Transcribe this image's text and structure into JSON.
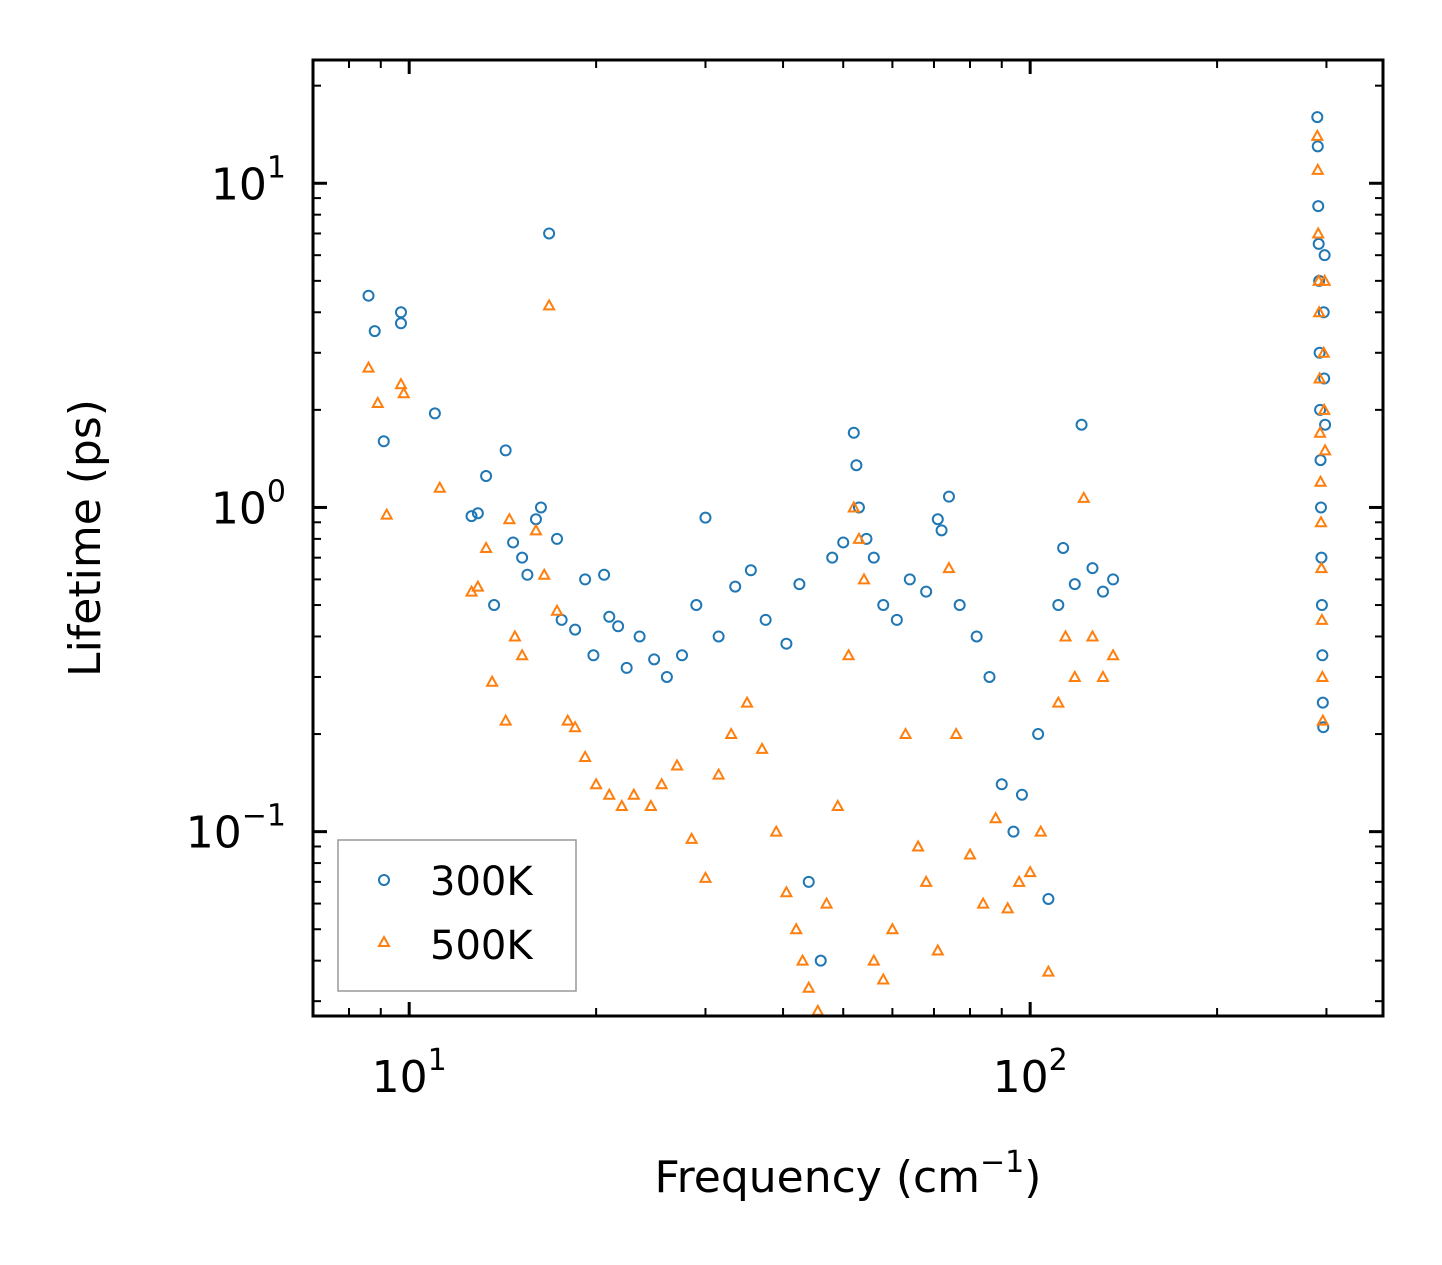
{
  "chart_data": {
    "type": "scatter",
    "title": "",
    "xlabel": "Frequency (cm",
    "xlabel_sup": "−1",
    "xlabel_tail": ")",
    "ylabel": "Lifetime (ps)",
    "xscale": "log",
    "yscale": "log",
    "xlim": [
      7.0,
      370
    ],
    "ylim": [
      0.027,
      24
    ],
    "x_ticks": [
      {
        "value": 10,
        "base": "10",
        "exp": "1"
      },
      {
        "value": 100,
        "base": "10",
        "exp": "2"
      }
    ],
    "y_ticks": [
      {
        "value": 0.1,
        "base": "10",
        "exp": "−1"
      },
      {
        "value": 1,
        "base": "10",
        "exp": "0"
      },
      {
        "value": 10,
        "base": "10",
        "exp": "1"
      }
    ],
    "legend_position": "lower-left",
    "series": [
      {
        "name": "300K",
        "marker": "circle",
        "color": "#1f77b4",
        "points": [
          [
            8.6,
            4.5
          ],
          [
            8.8,
            3.5
          ],
          [
            9.1,
            1.6
          ],
          [
            9.7,
            4.0
          ],
          [
            9.7,
            3.7
          ],
          [
            11.0,
            1.95
          ],
          [
            12.6,
            0.94
          ],
          [
            12.9,
            0.96
          ],
          [
            13.3,
            1.25
          ],
          [
            13.7,
            0.5
          ],
          [
            14.3,
            1.5
          ],
          [
            14.7,
            0.78
          ],
          [
            15.2,
            0.7
          ],
          [
            15.5,
            0.62
          ],
          [
            16.0,
            0.92
          ],
          [
            16.3,
            1.0
          ],
          [
            16.8,
            7.0
          ],
          [
            17.3,
            0.8
          ],
          [
            17.6,
            0.45
          ],
          [
            18.5,
            0.42
          ],
          [
            19.2,
            0.6
          ],
          [
            19.8,
            0.35
          ],
          [
            20.6,
            0.62
          ],
          [
            21.0,
            0.46
          ],
          [
            21.7,
            0.43
          ],
          [
            22.4,
            0.32
          ],
          [
            23.5,
            0.4
          ],
          [
            24.8,
            0.34
          ],
          [
            26.0,
            0.3
          ],
          [
            27.5,
            0.35
          ],
          [
            29.0,
            0.5
          ],
          [
            30.0,
            0.93
          ],
          [
            31.5,
            0.4
          ],
          [
            33.5,
            0.57
          ],
          [
            35.5,
            0.64
          ],
          [
            37.5,
            0.45
          ],
          [
            40.5,
            0.38
          ],
          [
            42.5,
            0.58
          ],
          [
            44.0,
            0.07
          ],
          [
            46.0,
            0.04
          ],
          [
            48.0,
            0.7
          ],
          [
            50.0,
            0.78
          ],
          [
            52.0,
            1.7
          ],
          [
            52.5,
            1.35
          ],
          [
            53.0,
            1.0
          ],
          [
            54.5,
            0.8
          ],
          [
            56.0,
            0.7
          ],
          [
            58.0,
            0.5
          ],
          [
            61.0,
            0.45
          ],
          [
            64.0,
            0.6
          ],
          [
            68.0,
            0.55
          ],
          [
            71.0,
            0.92
          ],
          [
            72.0,
            0.85
          ],
          [
            74.0,
            1.08
          ],
          [
            77.0,
            0.5
          ],
          [
            82.0,
            0.4
          ],
          [
            86.0,
            0.3
          ],
          [
            90.0,
            0.14
          ],
          [
            94.0,
            0.1
          ],
          [
            97.0,
            0.13
          ],
          [
            103.0,
            0.2
          ],
          [
            107.0,
            0.062
          ],
          [
            111.0,
            0.5
          ],
          [
            113.0,
            0.75
          ],
          [
            118.0,
            0.58
          ],
          [
            121.0,
            1.8
          ],
          [
            126.0,
            0.65
          ],
          [
            131.0,
            0.55
          ],
          [
            136.0,
            0.6
          ],
          [
            290.0,
            16.0
          ],
          [
            290.5,
            13.0
          ],
          [
            291.0,
            8.5
          ],
          [
            291.5,
            6.5
          ],
          [
            292.0,
            5.0
          ],
          [
            292.5,
            3.0
          ],
          [
            293.0,
            2.0
          ],
          [
            293.5,
            1.4
          ],
          [
            294.0,
            1.0
          ],
          [
            294.5,
            0.7
          ],
          [
            295.0,
            0.5
          ],
          [
            295.5,
            0.35
          ],
          [
            296.0,
            0.25
          ],
          [
            296.5,
            0.21
          ],
          [
            297.0,
            4.0
          ],
          [
            297.5,
            2.5
          ],
          [
            298.0,
            6.0
          ],
          [
            298.5,
            1.8
          ]
        ]
      },
      {
        "name": "500K",
        "marker": "triangle",
        "color": "#ff7f0e",
        "points": [
          [
            8.6,
            2.7
          ],
          [
            8.9,
            2.1
          ],
          [
            9.2,
            0.95
          ],
          [
            9.7,
            2.4
          ],
          [
            9.8,
            2.25
          ],
          [
            11.2,
            1.15
          ],
          [
            12.6,
            0.55
          ],
          [
            12.9,
            0.57
          ],
          [
            13.3,
            0.75
          ],
          [
            13.6,
            0.29
          ],
          [
            14.3,
            0.22
          ],
          [
            14.5,
            0.92
          ],
          [
            14.8,
            0.4
          ],
          [
            15.2,
            0.35
          ],
          [
            16.0,
            0.85
          ],
          [
            16.5,
            0.62
          ],
          [
            16.8,
            4.2
          ],
          [
            17.3,
            0.48
          ],
          [
            18.0,
            0.22
          ],
          [
            18.5,
            0.21
          ],
          [
            19.2,
            0.17
          ],
          [
            20.0,
            0.14
          ],
          [
            21.0,
            0.13
          ],
          [
            22.0,
            0.12
          ],
          [
            23.0,
            0.13
          ],
          [
            24.5,
            0.12
          ],
          [
            25.5,
            0.14
          ],
          [
            27.0,
            0.16
          ],
          [
            28.5,
            0.095
          ],
          [
            30.0,
            0.072
          ],
          [
            31.5,
            0.15
          ],
          [
            33.0,
            0.2
          ],
          [
            35.0,
            0.25
          ],
          [
            37.0,
            0.18
          ],
          [
            39.0,
            0.1
          ],
          [
            40.5,
            0.065
          ],
          [
            42.0,
            0.05
          ],
          [
            43.0,
            0.04
          ],
          [
            44.0,
            0.033
          ],
          [
            45.5,
            0.028
          ],
          [
            47.0,
            0.06
          ],
          [
            49.0,
            0.12
          ],
          [
            51.0,
            0.35
          ],
          [
            52.0,
            1.0
          ],
          [
            53.0,
            0.8
          ],
          [
            54.0,
            0.6
          ],
          [
            56.0,
            0.04
          ],
          [
            58.0,
            0.035
          ],
          [
            60.0,
            0.05
          ],
          [
            63.0,
            0.2
          ],
          [
            66.0,
            0.09
          ],
          [
            68.0,
            0.07
          ],
          [
            71.0,
            0.043
          ],
          [
            74.0,
            0.65
          ],
          [
            76.0,
            0.2
          ],
          [
            80.0,
            0.085
          ],
          [
            84.0,
            0.06
          ],
          [
            88.0,
            0.11
          ],
          [
            92.0,
            0.058
          ],
          [
            96.0,
            0.07
          ],
          [
            100.0,
            0.075
          ],
          [
            104.0,
            0.1
          ],
          [
            107.0,
            0.037
          ],
          [
            111.0,
            0.25
          ],
          [
            114.0,
            0.4
          ],
          [
            118.0,
            0.3
          ],
          [
            122.0,
            1.07
          ],
          [
            126.0,
            0.4
          ],
          [
            131.0,
            0.3
          ],
          [
            136.0,
            0.35
          ],
          [
            290.0,
            14.0
          ],
          [
            290.5,
            11.0
          ],
          [
            291.0,
            7.0
          ],
          [
            291.5,
            5.0
          ],
          [
            292.0,
            4.0
          ],
          [
            292.5,
            2.5
          ],
          [
            293.0,
            1.7
          ],
          [
            293.5,
            1.2
          ],
          [
            294.0,
            0.9
          ],
          [
            294.5,
            0.65
          ],
          [
            295.0,
            0.45
          ],
          [
            295.5,
            0.3
          ],
          [
            296.0,
            0.22
          ],
          [
            297.0,
            3.0
          ],
          [
            297.5,
            2.0
          ],
          [
            298.0,
            5.0
          ],
          [
            298.5,
            1.5
          ]
        ]
      }
    ]
  }
}
